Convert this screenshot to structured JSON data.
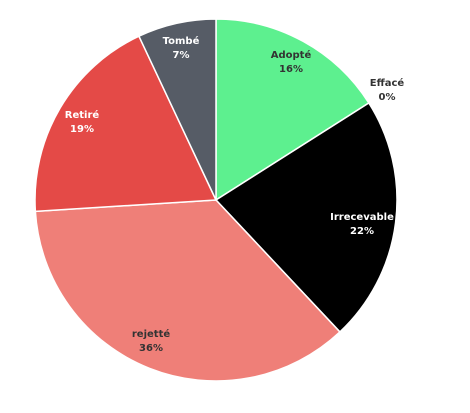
{
  "chart_data": {
    "type": "pie",
    "title": "",
    "slices": [
      {
        "name": "Adopté",
        "value": 16,
        "label": "16%",
        "color": "#5df08f",
        "text_color": "#333333"
      },
      {
        "name": "Effacé",
        "value": 0,
        "label": "0%",
        "color": "#cfcfcf",
        "text_color": "#333333"
      },
      {
        "name": "Irrecevable",
        "value": 22,
        "label": "22%",
        "color": "#000000",
        "text_color": "#ffffff"
      },
      {
        "name": "rejetté",
        "value": 36,
        "label": "36%",
        "color": "#ef7f78",
        "text_color": "#333333"
      },
      {
        "name": "Retiré",
        "value": 19,
        "label": "19%",
        "color": "#e44a47",
        "text_color": "#ffffff"
      },
      {
        "name": "Tombé",
        "value": 7,
        "label": "7%",
        "color": "#565c66",
        "text_color": "#ffffff"
      }
    ],
    "start_at": "12 o'clock",
    "direction": "clockwise",
    "legend": "none"
  }
}
